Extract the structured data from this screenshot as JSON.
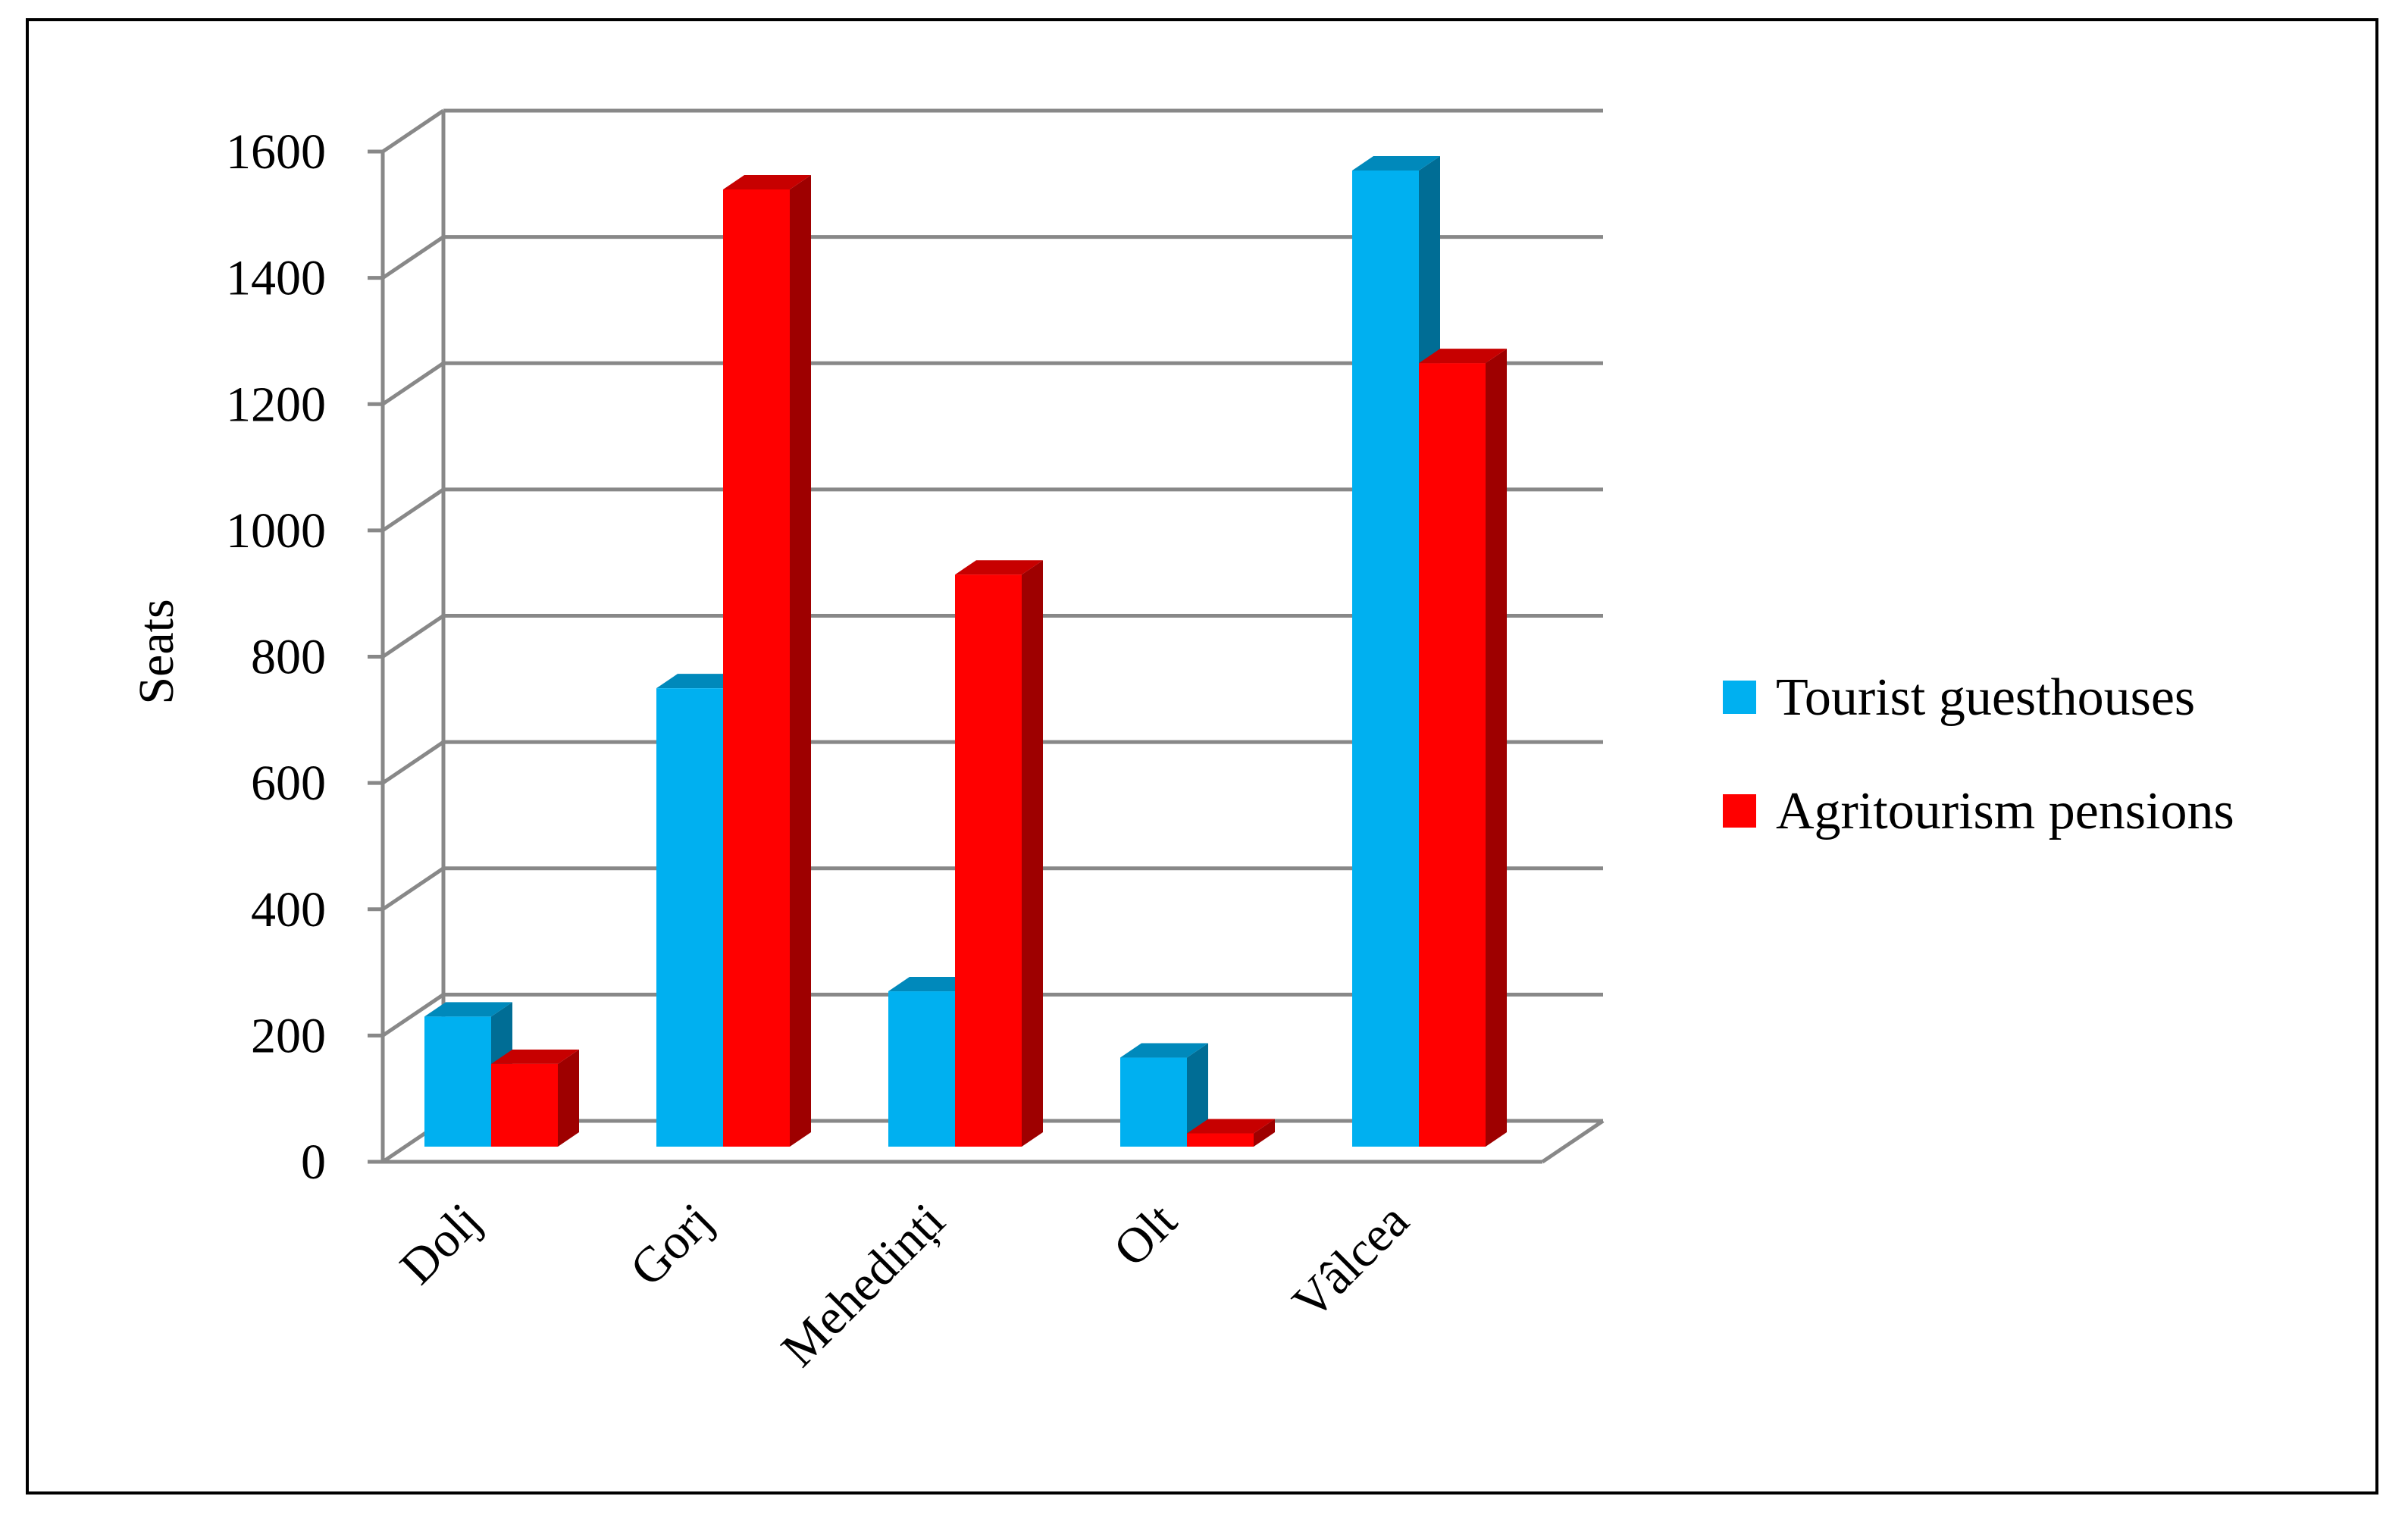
{
  "chart_data": {
    "type": "bar",
    "variant": "3d-clustered-column",
    "categories": [
      "Dolj",
      "Gorj",
      "Mehedinți",
      "Olt",
      "Vâlcea"
    ],
    "series": [
      {
        "name": "Tourist guesthouses",
        "color": "#00B0F0",
        "values": [
          230,
          750,
          270,
          165,
          1570
        ]
      },
      {
        "name": "Agritourism pensions",
        "color": "#FF0000",
        "values": [
          155,
          1540,
          930,
          45,
          1265
        ]
      }
    ],
    "ylabel": "Seats",
    "ylim": [
      0,
      1600
    ],
    "yticks": [
      "0",
      "200",
      "400",
      "600",
      "800",
      "1000",
      "1200",
      "1400",
      "1600"
    ],
    "grid": true,
    "legend_position": "right"
  }
}
